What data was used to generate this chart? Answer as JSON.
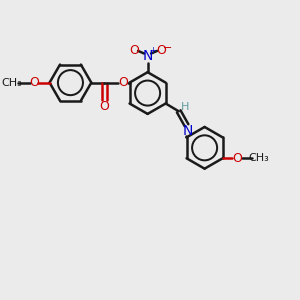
{
  "background_color": "#ebebeb",
  "line_color": "#1a1a1a",
  "bond_width": 1.8,
  "figsize": [
    3.0,
    3.0
  ],
  "dpi": 100,
  "ring_r": 0.48,
  "xlim": [
    -3.2,
    3.4
  ],
  "ylim": [
    -3.0,
    2.2
  ],
  "no2_N_color": "#0000cc",
  "no2_O_color": "#cc0000",
  "ester_O_color": "#cc0000",
  "carbonyl_O_color": "#cc0000",
  "methoxy_O_color": "#cc0000",
  "imine_N_color": "#0000cc",
  "imine_H_color": "#5f9ea0",
  "font_size_atom": 9,
  "font_size_methyl": 8
}
